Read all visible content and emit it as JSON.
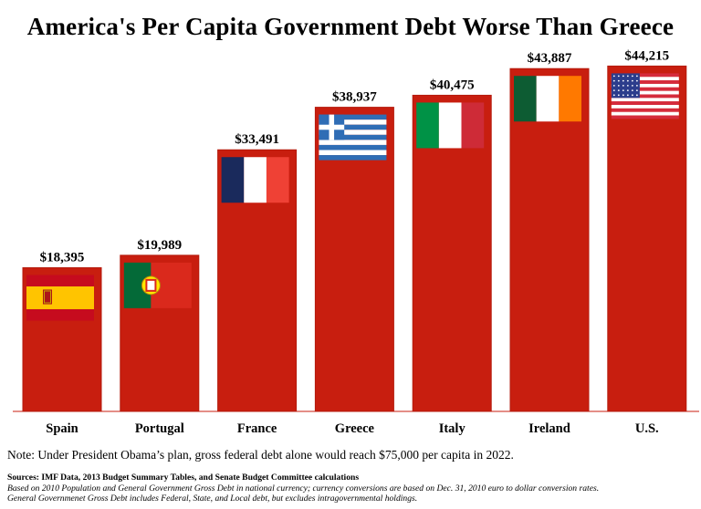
{
  "title": "America's Per Capita Government Debt Worse Than Greece",
  "note": "Note: Under President Obama’s plan, gross federal debt alone would reach $75,000 per capita in 2022.",
  "sources": {
    "title": "Sources: IMF Data, 2013 Budget Summary Tables, and Senate Budget Committee calculations",
    "line1": "Based on 2010 Population and General Government Gross Debt in national currency; currency conversions are based on Dec. 31, 2010 euro to dollar conversion rates.",
    "line2": "General Governmenet Gross Debt includes Federal, State, and Local debt, but excludes intragovernmental holdings."
  },
  "colors": {
    "bar": "#c81e0f",
    "bar_edge": "#b41a0c"
  },
  "chart_data": {
    "type": "bar",
    "title": "America's Per Capita Government Debt Worse Than Greece",
    "xlabel": "",
    "ylabel": "",
    "ylim": [
      0,
      48000
    ],
    "grid": false,
    "categories": [
      "Spain",
      "Portugal",
      "France",
      "Greece",
      "Italy",
      "Ireland",
      "U.S."
    ],
    "values": [
      18395,
      19989,
      33491,
      38937,
      40475,
      43887,
      44215
    ],
    "value_labels": [
      "$18,395",
      "$19,989",
      "$33,491",
      "$38,937",
      "$40,475",
      "$43,887",
      "$44,215"
    ],
    "flags": [
      "spain-flag-icon",
      "portugal-flag-icon",
      "france-flag-icon",
      "greece-flag-icon",
      "italy-flag-icon",
      "ireland-flag-icon",
      "us-flag-icon"
    ]
  }
}
